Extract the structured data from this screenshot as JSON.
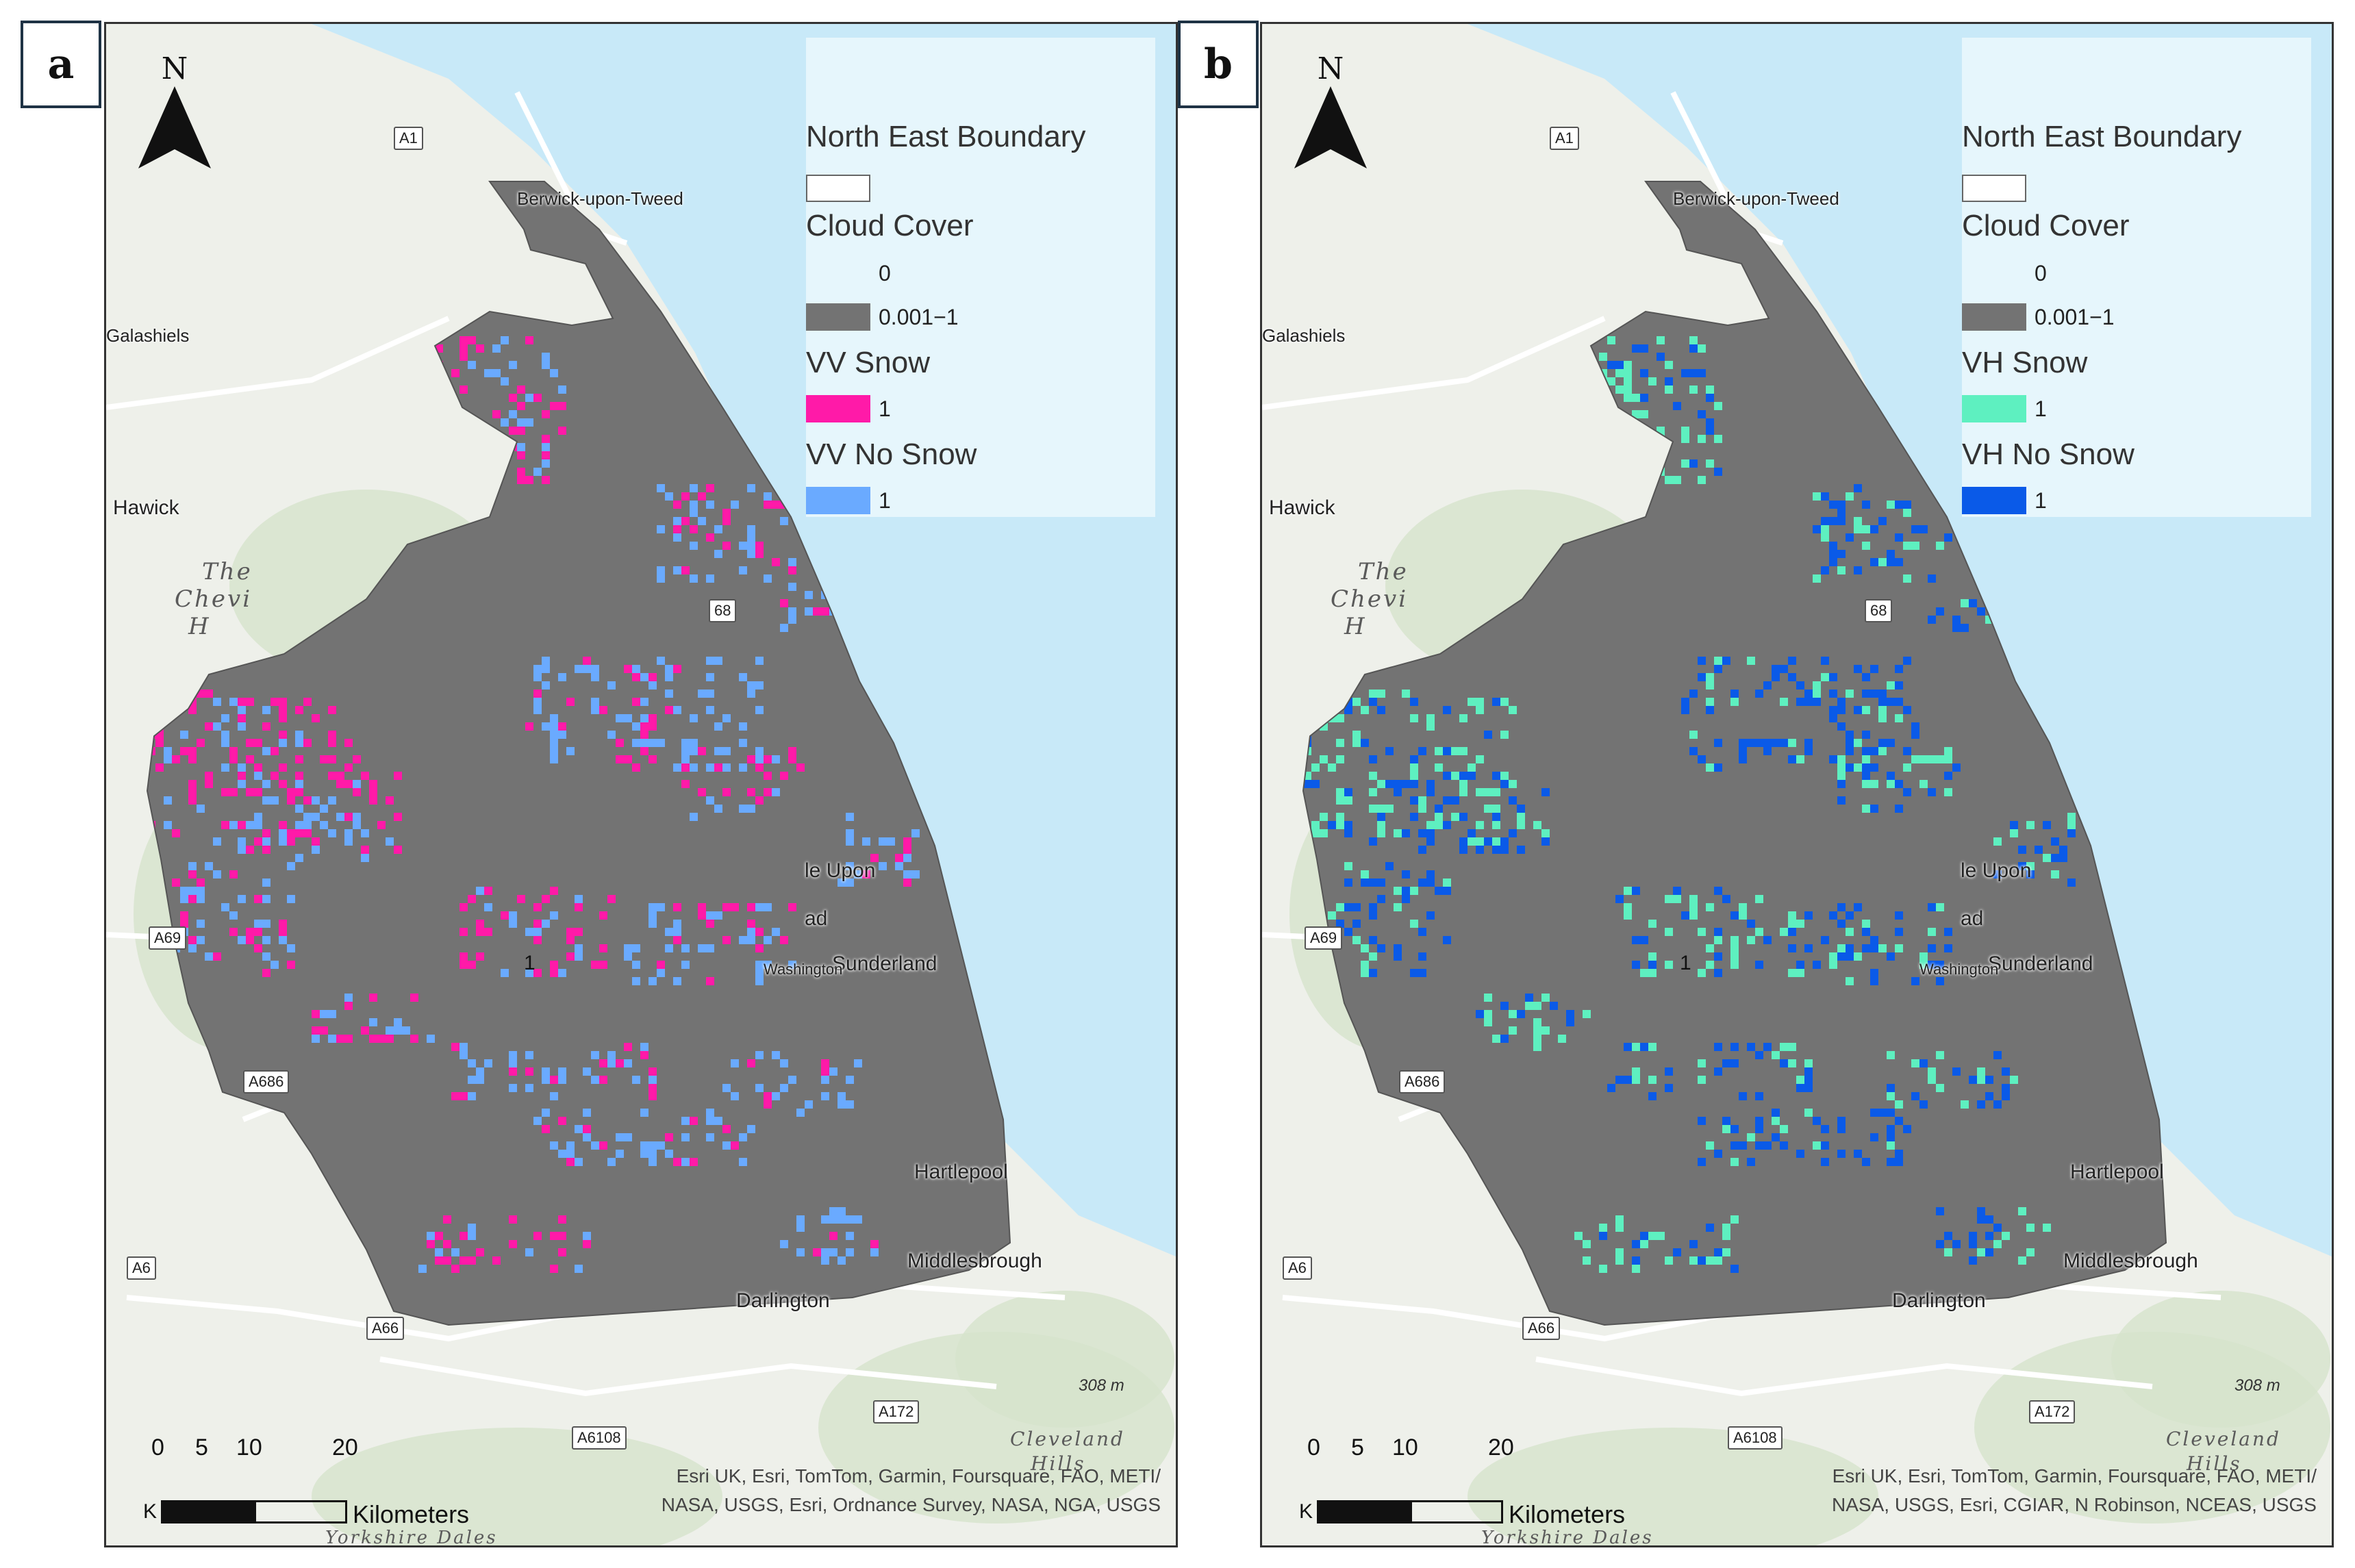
{
  "panels": [
    {
      "label": "a",
      "legend": {
        "boundary_title": "North East Boundary",
        "cloud_title": "Cloud Cover",
        "cloud_clear_value": "0",
        "cloud_value": "0.001−1",
        "snow_title": "VV Snow",
        "snow_value": "1",
        "nosnow_title": "VV No Snow",
        "nosnow_value": "1"
      },
      "colors": {
        "cloud": "#737373",
        "snow": "#ff1aa8",
        "nosnow": "#6aaaff"
      },
      "attribution_line1": "Esri UK, Esri, TomTom, Garmin, Foursquare, FAO, METI/",
      "attribution_line2": "NASA, USGS, Esri, Ordnance Survey, NASA, NGA, USGS"
    },
    {
      "label": "b",
      "legend": {
        "boundary_title": "North East Boundary",
        "cloud_title": "Cloud Cover",
        "cloud_clear_value": "0",
        "cloud_value": "0.001−1",
        "snow_title": "VH Snow",
        "snow_value": "1",
        "nosnow_title": "VH No Snow",
        "nosnow_value": "1"
      },
      "colors": {
        "cloud": "#737373",
        "snow": "#5ef0c0",
        "nosnow": "#0a5ae8"
      },
      "attribution_line1": "Esri UK, Esri, TomTom, Garmin, Foursquare, FAO, METI/",
      "attribution_line2": "NASA, USGS, Esri, CGIAR, N Robinson, NCEAS, USGS"
    }
  ],
  "north_label": "N",
  "places": {
    "berwick": "Berwick-upon-Tweed",
    "galashiels": "Galashiels",
    "hawick": "Hawick",
    "newcastle": "le Upon",
    "newcastle2": "ad",
    "sunderland": "Sunderland",
    "washington": "Washington",
    "hartlepool": "Hartlepool",
    "middlesbrough": "Middlesbrough",
    "darlington": "Darlington",
    "the": "The",
    "cheviot": "Chevi",
    "cheviot2": "H",
    "cleveland": "Cleveland",
    "hills": "Hills",
    "yorkshire": "Yorkshire Dales"
  },
  "roads": {
    "a1": "A1",
    "a69": "A69",
    "a686": "A686",
    "a6": "A6",
    "a66": "A66",
    "a172": "A172",
    "a6108": "A6108",
    "a68": "68"
  },
  "elevation": "308 m",
  "center_value": "1",
  "scale": {
    "ticks": [
      "0",
      "5",
      "10",
      "20"
    ],
    "unit": "Kilometers",
    "k": "K"
  },
  "water_color": "#c8e9f8"
}
